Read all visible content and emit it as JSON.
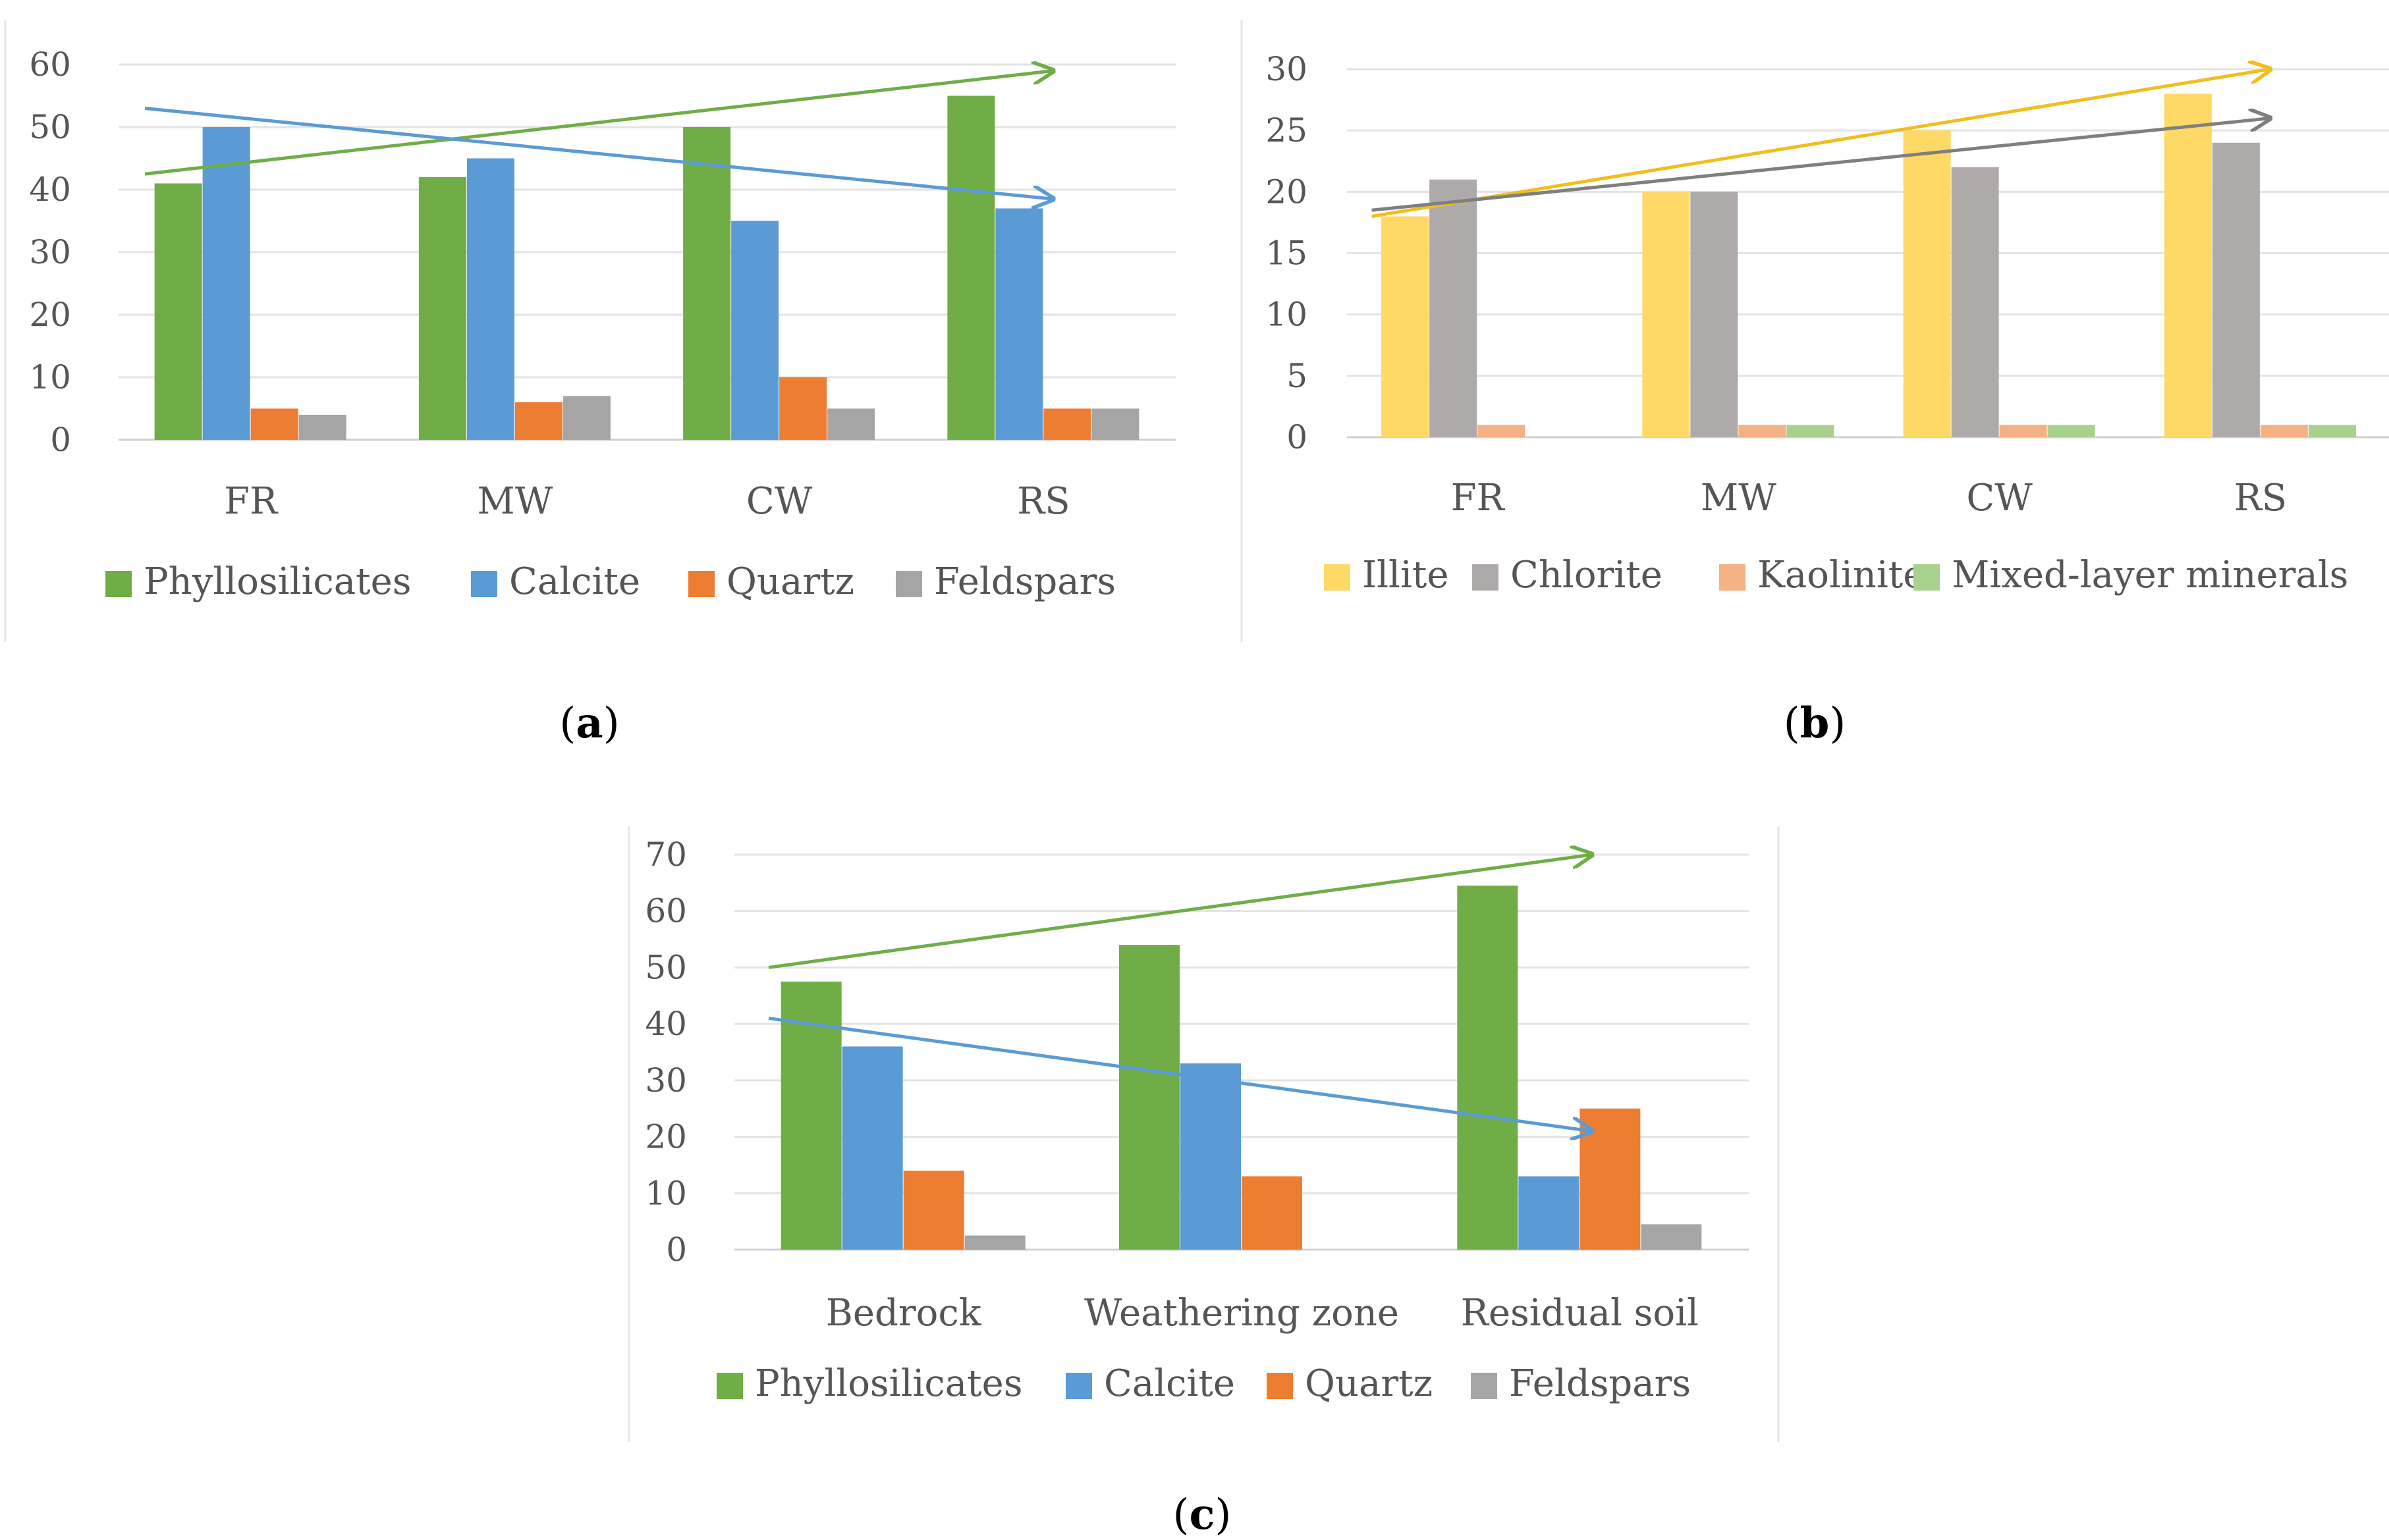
{
  "chart_data": [
    {
      "panel": "a",
      "type": "bar",
      "categories": [
        "FR",
        "MW",
        "CW",
        "RS"
      ],
      "ylim": [
        0,
        60
      ],
      "yticks": [
        0,
        10,
        20,
        30,
        40,
        50,
        60
      ],
      "grid": true,
      "legend_position": "bottom",
      "series": [
        {
          "name": "Phyllosilicates",
          "color": "#70AD47",
          "values": [
            41,
            42,
            50,
            55
          ]
        },
        {
          "name": "Calcite",
          "color": "#5B9BD5",
          "values": [
            50,
            45,
            35,
            37
          ]
        },
        {
          "name": "Quartz",
          "color": "#ED7D31",
          "values": [
            5,
            6,
            10,
            5
          ]
        },
        {
          "name": "Feldspars",
          "color": "#A5A5A5",
          "values": [
            4,
            7,
            5,
            5
          ]
        }
      ],
      "trend_arrows": [
        {
          "series": "Phyllosilicates",
          "color": "#70AD47",
          "from": [
            "FR",
            42.5
          ],
          "to": [
            "RS",
            59
          ]
        },
        {
          "series": "Calcite",
          "color": "#5B9BD5",
          "from": [
            "FR",
            53
          ],
          "to": [
            "RS",
            38.5
          ]
        }
      ]
    },
    {
      "panel": "b",
      "type": "bar",
      "categories": [
        "FR",
        "MW",
        "CW",
        "RS"
      ],
      "ylim": [
        0,
        30
      ],
      "yticks": [
        0,
        5,
        10,
        15,
        20,
        25,
        30
      ],
      "grid": true,
      "legend_position": "bottom",
      "series": [
        {
          "name": "Illite",
          "color": "#FFD966",
          "values": [
            18,
            20,
            25,
            28
          ]
        },
        {
          "name": "Chlorite",
          "color": "#AEAAAA",
          "values": [
            21,
            20,
            22,
            24
          ]
        },
        {
          "name": "Kaolinite",
          "color": "#F4B183",
          "values": [
            1,
            1,
            1,
            1
          ]
        },
        {
          "name": "Mixed-layer minerals",
          "color": "#A9D18E",
          "values": [
            0,
            1,
            1,
            1
          ]
        }
      ],
      "trend_arrows": [
        {
          "series": "Illite",
          "color": "#F2BE1E",
          "from": [
            "FR",
            18
          ],
          "to": [
            "RS",
            30
          ]
        },
        {
          "series": "Chlorite",
          "color": "#7F7F7F",
          "from": [
            "FR",
            18.5
          ],
          "to": [
            "RS",
            26
          ]
        }
      ]
    },
    {
      "panel": "c",
      "type": "bar",
      "categories": [
        "Bedrock",
        "Weathering zone",
        "Residual soil"
      ],
      "ylim": [
        0,
        70
      ],
      "yticks": [
        0,
        10,
        20,
        30,
        40,
        50,
        60,
        70
      ],
      "grid": true,
      "legend_position": "bottom",
      "series": [
        {
          "name": "Phyllosilicates",
          "color": "#70AD47",
          "values": [
            47.5,
            54,
            64.5
          ]
        },
        {
          "name": "Calcite",
          "color": "#5B9BD5",
          "values": [
            36,
            33,
            13
          ]
        },
        {
          "name": "Quartz",
          "color": "#ED7D31",
          "values": [
            14,
            13,
            25
          ]
        },
        {
          "name": "Feldspars",
          "color": "#A5A5A5",
          "values": [
            2.5,
            0,
            4.5
          ]
        }
      ],
      "trend_arrows": [
        {
          "series": "Phyllosilicates",
          "color": "#70AD47",
          "from": [
            "Bedrock",
            50
          ],
          "to": [
            "Residual soil",
            70
          ]
        },
        {
          "series": "Calcite",
          "color": "#5B9BD5",
          "from": [
            "Bedrock",
            41
          ],
          "to": [
            "Residual soil",
            21
          ]
        }
      ]
    }
  ],
  "captions": {
    "a": {
      "open": "(",
      "letter": "a",
      "close": ")"
    },
    "b": {
      "open": "(",
      "letter": "b",
      "close": ")"
    },
    "c": {
      "open": "(",
      "letter": "c",
      "close": ")"
    }
  }
}
